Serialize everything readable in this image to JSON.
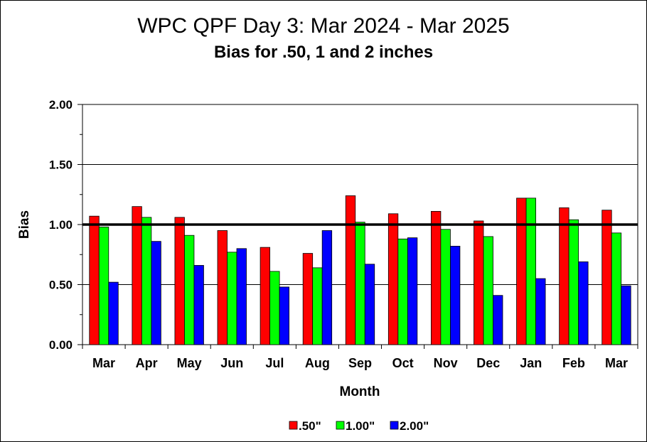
{
  "chart_data": {
    "type": "bar",
    "title": "WPC QPF Day 3:  Mar 2024 - Mar 2025",
    "subtitle": "Bias for .50, 1 and 2 inches",
    "xlabel": "Month",
    "ylabel": "Bias",
    "ylim": [
      0,
      2
    ],
    "yticks": [
      "0.00",
      "0.50",
      "1.00",
      "1.50",
      "2.00"
    ],
    "grid": "horizontal",
    "legend_position": "bottom",
    "reference_line": 1.0,
    "categories": [
      "Mar",
      "Apr",
      "May",
      "Jun",
      "Jul",
      "Aug",
      "Sep",
      "Oct",
      "Nov",
      "Dec",
      "Jan",
      "Feb",
      "Mar"
    ],
    "series": [
      {
        "name": ".50\"",
        "color": "#ff0000",
        "values": [
          1.07,
          1.15,
          1.06,
          0.95,
          0.81,
          0.76,
          1.24,
          1.09,
          1.11,
          1.03,
          1.22,
          1.14,
          1.12
        ]
      },
      {
        "name": "1.00\"",
        "color": "#00ff00",
        "values": [
          0.98,
          1.06,
          0.91,
          0.77,
          0.61,
          0.64,
          1.02,
          0.88,
          0.96,
          0.9,
          1.22,
          1.04,
          0.93
        ]
      },
      {
        "name": "2.00\"",
        "color": "#0000ff",
        "values": [
          0.52,
          0.86,
          0.66,
          0.8,
          0.48,
          0.95,
          0.67,
          0.89,
          0.82,
          0.41,
          0.55,
          0.69,
          0.49
        ]
      }
    ]
  }
}
